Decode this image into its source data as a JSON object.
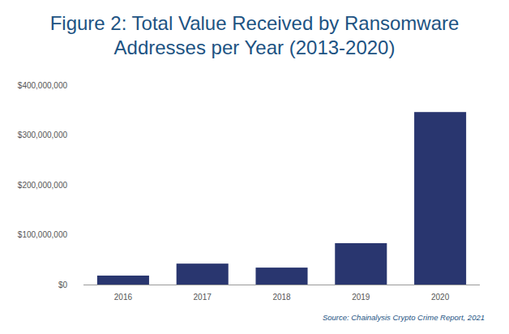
{
  "chart_data": {
    "type": "bar",
    "title": "Figure 2: Total Value Received by Ransomware Addresses per Year (2013-2020)",
    "categories": [
      "2016",
      "2017",
      "2018",
      "2019",
      "2020"
    ],
    "values": [
      18000000,
      42000000,
      34000000,
      83000000,
      346000000
    ],
    "color": "#29366f",
    "ylim": [
      0,
      400000000
    ],
    "yticks": [
      {
        "value": 0,
        "label": "$0"
      },
      {
        "value": 100000000,
        "label": "$100,000,000"
      },
      {
        "value": 200000000,
        "label": "$200,000,000"
      },
      {
        "value": 300000000,
        "label": "$300,000,000"
      },
      {
        "value": 400000000,
        "label": "$400,000,000"
      }
    ],
    "grid": false,
    "source": "Source: Chainalysis Crypto Crime Report, 2021"
  }
}
